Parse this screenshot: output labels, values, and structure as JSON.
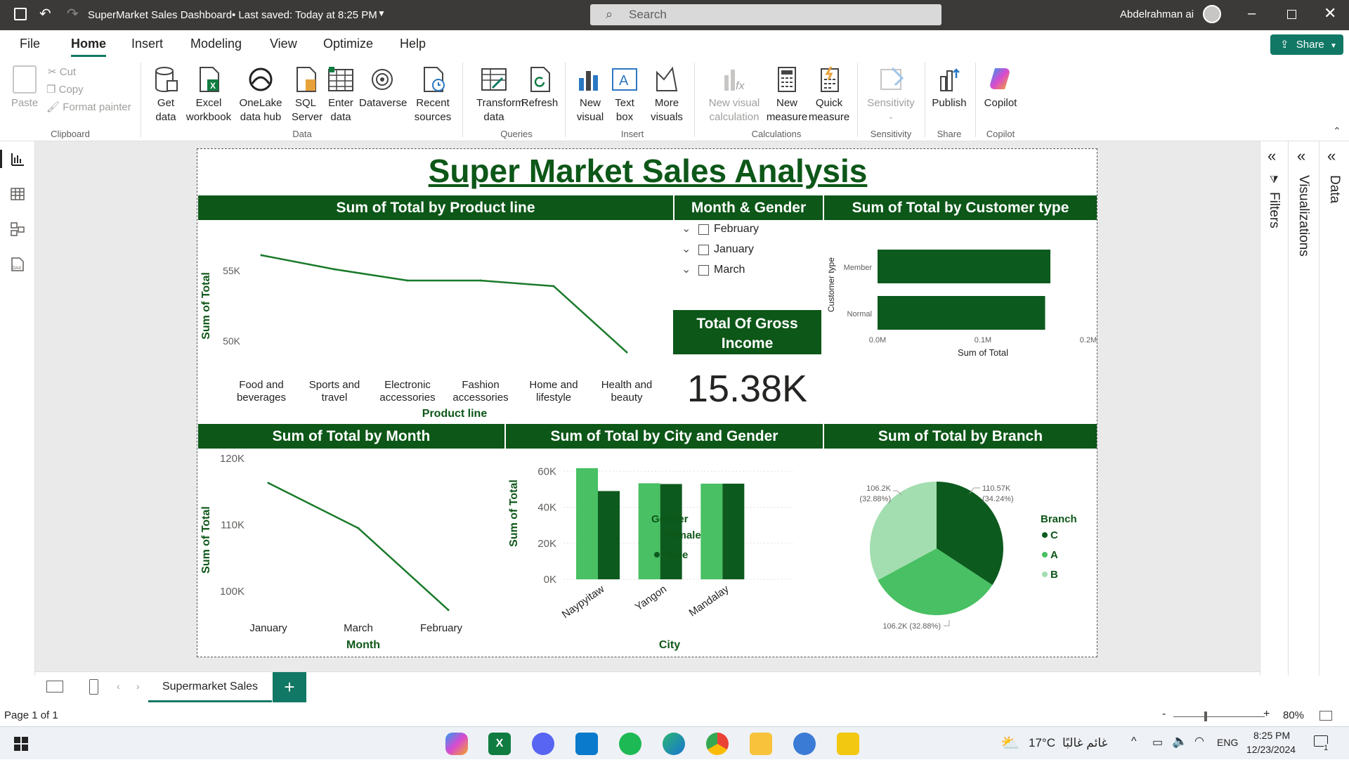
{
  "window": {
    "title": "SuperMarket Sales Dashboard",
    "saved": "• Last saved: Today at 8:25 PM",
    "search_placeholder": "Search",
    "user": "Abdelrahman ai"
  },
  "menu": [
    "File",
    "Home",
    "Insert",
    "Modeling",
    "View",
    "Optimize",
    "Help"
  ],
  "share_label": "Share",
  "ribbon": {
    "clipboard": {
      "paste": "Paste",
      "cut": "Cut",
      "copy": "Copy",
      "format_painter": "Format painter",
      "group": "Clipboard"
    },
    "data": {
      "get_data": "Get data",
      "excel": "Excel workbook",
      "onelake": "OneLake data hub",
      "sql": "SQL Server",
      "enter": "Enter data",
      "dataverse": "Dataverse",
      "recent": "Recent sources",
      "group": "Data"
    },
    "queries": {
      "transform": "Transform data",
      "refresh": "Refresh",
      "group": "Queries"
    },
    "insert": {
      "new_visual": "New visual",
      "text_box": "Text box",
      "more_visuals": "More visuals",
      "group": "Insert"
    },
    "calculations": {
      "new_visual_calc": "New visual calculation",
      "new_measure": "New measure",
      "quick_measure": "Quick measure",
      "group": "Calculations"
    },
    "sensitivity": {
      "label": "Sensitivity",
      "group": "Sensitivity"
    },
    "share": {
      "publish": "Publish",
      "group": "Share"
    },
    "copilot": {
      "label": "Copilot",
      "group": "Copilot"
    }
  },
  "report": {
    "title": "Super Market Sales Analysis",
    "product_header": "Sum of Total by Product line",
    "month_gender_header": "Month & Gender",
    "customer_header": "Sum of Total by Customer type",
    "month_header": "Sum of Total by Month",
    "city_header": "Sum of Total by City and Gender",
    "branch_header": "Sum of Total by Branch",
    "slicer": [
      "February",
      "January",
      "March"
    ],
    "card_title": "Total Of Gross Income",
    "card_value": "15.38K"
  },
  "chart_data": [
    {
      "type": "line",
      "title": "Sum of Total by Product line",
      "xlabel": "Product line",
      "ylabel": "Sum of Total",
      "categories": [
        "Food and beverages",
        "Sports and travel",
        "Electronic accessories",
        "Fashion accessories",
        "Home and lifestyle",
        "Health and beauty"
      ],
      "values": [
        56.1,
        55.1,
        54.3,
        54.3,
        53.9,
        49.2
      ],
      "yticks": [
        "50K",
        "55K"
      ],
      "ylim": [
        48.0,
        57.0
      ],
      "color": "#1a7a2a"
    },
    {
      "type": "bar",
      "title": "Sum of Total by Customer type",
      "xlabel": "Sum of Total",
      "ylabel": "Customer type",
      "categories": [
        "Member",
        "Normal"
      ],
      "values": [
        0.164,
        0.159
      ],
      "xticks": [
        "0.0M",
        "0.1M",
        "0.2M"
      ],
      "xlim": [
        0,
        0.2
      ],
      "color": "#0d5a1e"
    },
    {
      "type": "line",
      "title": "Sum of Total by Month",
      "xlabel": "Month",
      "ylabel": "Sum of Total",
      "categories": [
        "January",
        "March",
        "February"
      ],
      "values": [
        116.3,
        109.5,
        97.2
      ],
      "yticks": [
        "100K",
        "110K",
        "120K"
      ],
      "ylim": [
        98.0,
        120.0
      ],
      "color": "#1a7a2a"
    },
    {
      "type": "bar",
      "title": "Sum of Total by City and Gender",
      "xlabel": "City",
      "ylabel": "Sum of Total",
      "categories": [
        "Naypyitaw",
        "Yangon",
        "Mandalay"
      ],
      "series": [
        {
          "name": "Female",
          "values": [
            61.7,
            53.3,
            53.1
          ],
          "color": "#48c063"
        },
        {
          "name": "Male",
          "values": [
            49.0,
            52.9,
            53.1
          ],
          "color": "#0d5a1e"
        }
      ],
      "yticks": [
        "0K",
        "20K",
        "40K",
        "60K"
      ],
      "ylim": [
        0,
        64
      ],
      "legend_title": "Gender"
    },
    {
      "type": "pie",
      "title": "Sum of Total by Branch",
      "legend_title": "Branch",
      "slices": [
        {
          "name": "C",
          "value": 110.57,
          "label": "110.57K (34.24%)",
          "color": "#0d5a1e"
        },
        {
          "name": "A",
          "value": 106.2,
          "label": "106.2K (32.88%)",
          "color": "#48c063"
        },
        {
          "name": "B",
          "value": 106.2,
          "label": "106.2K (32.88%)",
          "color": "#a3deb0"
        }
      ]
    }
  ],
  "panels": {
    "filters": "Filters",
    "visualizations": "Visualizations",
    "data": "Data"
  },
  "tabs": {
    "page": "Supermarket Sales",
    "add": "+"
  },
  "status": {
    "page": "Page 1 of 1",
    "zoom": "80%",
    "minus": "-",
    "plus": "+"
  },
  "taskbar": {
    "weather": "17°C",
    "weather_text": "غائم غالبًا",
    "lang": "ENG",
    "time": "8:25 PM",
    "date": "12/23/2024",
    "notif": "1"
  }
}
